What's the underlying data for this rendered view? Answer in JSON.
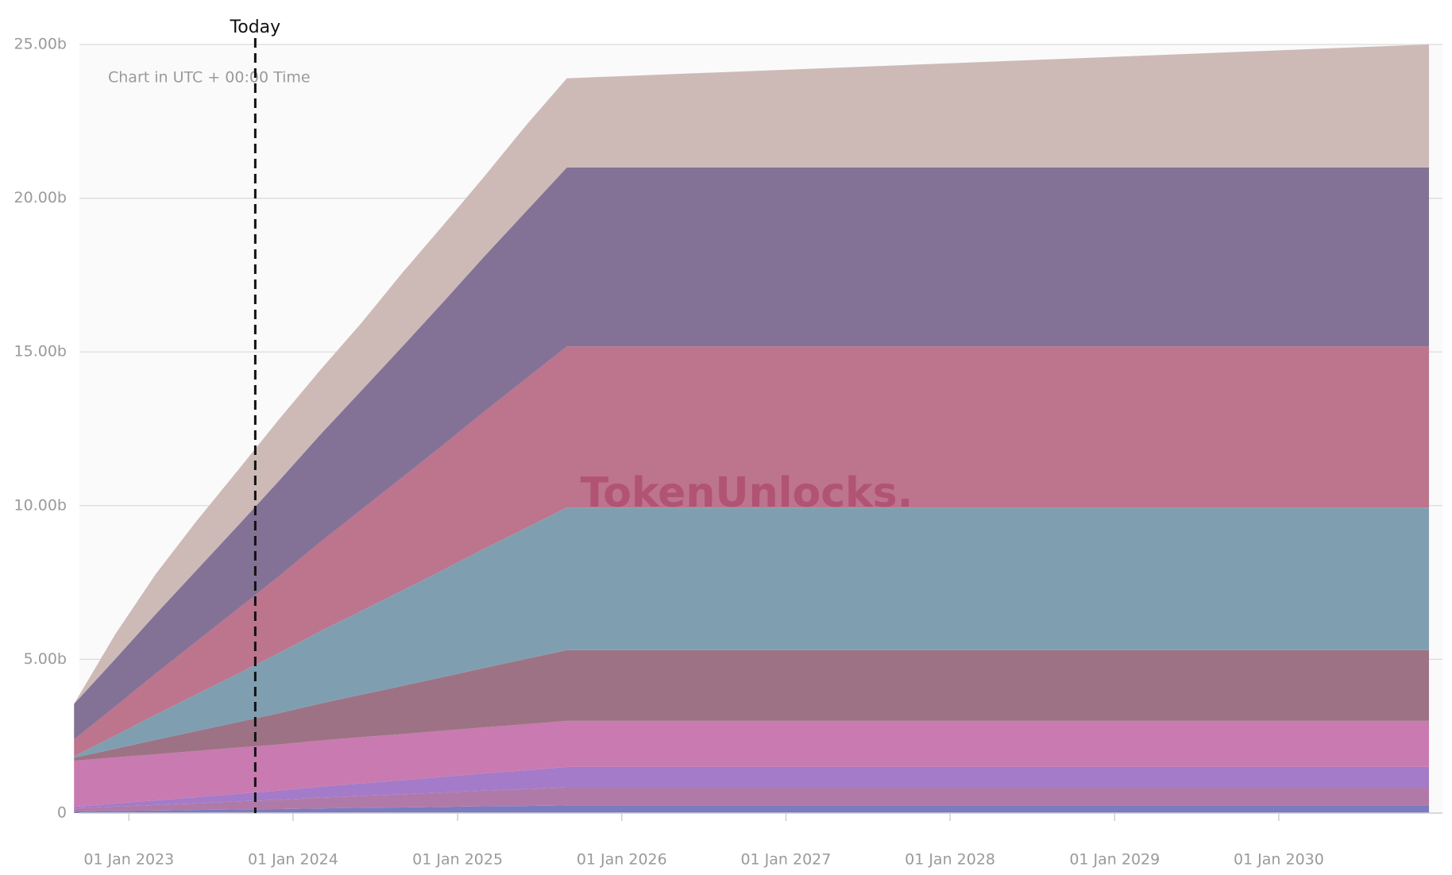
{
  "chart_data": {
    "type": "stacked-area",
    "subtitle": "Chart in UTC + 00:00 Time",
    "watermark": "TokenUnlocks.",
    "annotation": {
      "x": "2023-10-09",
      "label": "Today"
    },
    "x": [
      "2022-09-01",
      "2022-12-01",
      "2023-03-01",
      "2023-06-01",
      "2023-09-01",
      "2023-12-01",
      "2024-03-01",
      "2024-06-01",
      "2024-09-01",
      "2024-12-01",
      "2025-03-01",
      "2025-06-01",
      "2025-09-01",
      "2030-12-01"
    ],
    "xlim": [
      "2022-09-13",
      "2030-12-31"
    ],
    "xticks": [
      {
        "value": "2023-01-01",
        "label": "01 Jan 2023"
      },
      {
        "value": "2024-01-01",
        "label": "01 Jan 2024"
      },
      {
        "value": "2025-01-01",
        "label": "01 Jan 2025"
      },
      {
        "value": "2026-01-01",
        "label": "01 Jan 2026"
      },
      {
        "value": "2027-01-01",
        "label": "01 Jan 2027"
      },
      {
        "value": "2028-01-01",
        "label": "01 Jan 2028"
      },
      {
        "value": "2029-01-01",
        "label": "01 Jan 2029"
      },
      {
        "value": "2030-01-01",
        "label": "01 Jan 2030"
      }
    ],
    "ylim": [
      0,
      25
    ],
    "yticks": [
      0,
      {
        "value": 5,
        "label": "5.00b"
      },
      {
        "value": 10,
        "label": "10.00b"
      },
      {
        "value": 15,
        "label": "15.00b"
      },
      {
        "value": 20,
        "label": "20.00b"
      },
      {
        "value": 25,
        "label": "25.00b"
      }
    ],
    "grid": true,
    "series": [
      {
        "color": "#7b7bbf",
        "values": [
          0.05,
          0.07,
          0.08,
          0.1,
          0.12,
          0.13,
          0.15,
          0.17,
          0.18,
          0.2,
          0.22,
          0.23,
          0.25,
          0.25
        ]
      },
      {
        "color": "#b07aa8",
        "values": [
          0.1,
          0.14,
          0.18,
          0.22,
          0.26,
          0.3,
          0.35,
          0.39,
          0.43,
          0.47,
          0.51,
          0.55,
          0.59,
          0.59
        ]
      },
      {
        "color": "#a47bc8",
        "values": [
          0.05,
          0.1,
          0.15,
          0.2,
          0.25,
          0.3,
          0.36,
          0.41,
          0.46,
          0.51,
          0.56,
          0.61,
          0.66,
          0.66
        ]
      },
      {
        "color": "#c97ab0",
        "values": [
          1.5,
          1.5,
          1.5,
          1.5,
          1.5,
          1.5,
          1.5,
          1.5,
          1.5,
          1.5,
          1.5,
          1.5,
          1.5,
          1.5
        ]
      },
      {
        "color": "#9e7285",
        "values": [
          0.1,
          0.28,
          0.47,
          0.65,
          0.83,
          1.02,
          1.2,
          1.38,
          1.57,
          1.75,
          1.93,
          2.12,
          2.3,
          2.3
        ]
      },
      {
        "color": "#7f9fb0",
        "values": [
          0.05,
          0.43,
          0.82,
          1.2,
          1.58,
          1.96,
          2.35,
          2.73,
          3.11,
          3.49,
          3.88,
          4.26,
          4.64,
          4.64
        ]
      },
      {
        "color": "#bd748d",
        "values": [
          0.55,
          0.94,
          1.33,
          1.72,
          2.11,
          2.5,
          2.9,
          3.29,
          3.68,
          4.07,
          4.46,
          4.85,
          5.24,
          5.24
        ]
      },
      {
        "color": "#837296",
        "values": [
          1.15,
          1.54,
          1.93,
          2.32,
          2.71,
          3.1,
          3.49,
          3.87,
          4.26,
          4.65,
          5.04,
          5.43,
          5.82,
          5.82
        ]
      },
      {
        "color": "#cdbab7",
        "values": [
          0,
          0.8,
          1.3,
          1.6,
          1.8,
          2.0,
          2.1,
          2.2,
          2.4,
          2.5,
          2.6,
          2.8,
          2.9,
          4.0
        ]
      }
    ]
  }
}
